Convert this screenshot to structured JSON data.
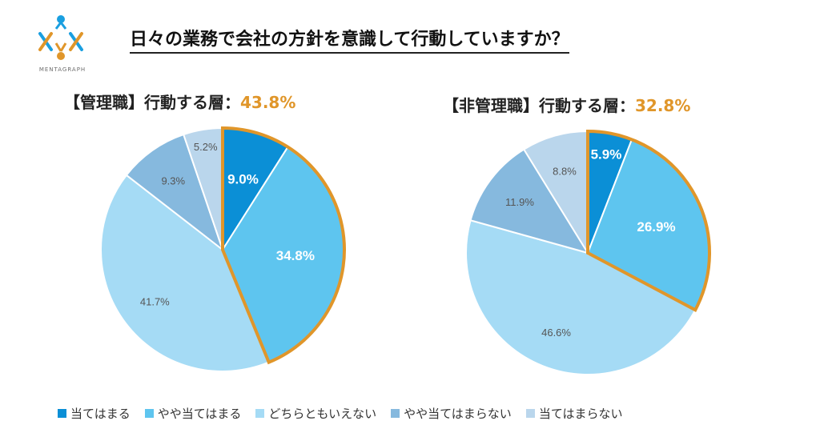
{
  "page": {
    "title": "日々の業務で会社の方針を意識して行動していますか？",
    "logo_text": "MENTAGRAPH"
  },
  "colors": {
    "accent": "#e0962a",
    "series": [
      "#0b8fd6",
      "#5ec5ef",
      "#a5dbf5",
      "#86b9de",
      "#bad6ec"
    ]
  },
  "legend": [
    "当てはまる",
    "やや当てはまる",
    "どちらともいえない",
    "やや当てはまらない",
    "当てはまらない"
  ],
  "chart_data": [
    {
      "type": "pie",
      "title_prefix": "【管理職】行動する層：",
      "title_value": "43.8%",
      "categories": [
        "当てはまる",
        "やや当てはまる",
        "どちらともいえない",
        "やや当てはまらない",
        "当てはまらない"
      ],
      "values": [
        9.0,
        34.8,
        41.7,
        9.3,
        5.2
      ],
      "labels": [
        "9.0%",
        "34.8%",
        "41.7%",
        "9.3%",
        "5.2%"
      ],
      "highlighted": [
        0,
        1
      ],
      "legend_position": "bottom"
    },
    {
      "type": "pie",
      "title_prefix": "【非管理職】行動する層：",
      "title_value": "32.8%",
      "categories": [
        "当てはまる",
        "やや当てはまる",
        "どちらともいえない",
        "やや当てはまらない",
        "当てはまらない"
      ],
      "values": [
        5.9,
        26.9,
        46.6,
        11.9,
        8.8
      ],
      "labels": [
        "5.9%",
        "26.9%",
        "46.6%",
        "11.9%",
        "8.8%"
      ],
      "highlighted": [
        0,
        1
      ],
      "legend_position": "bottom"
    }
  ]
}
